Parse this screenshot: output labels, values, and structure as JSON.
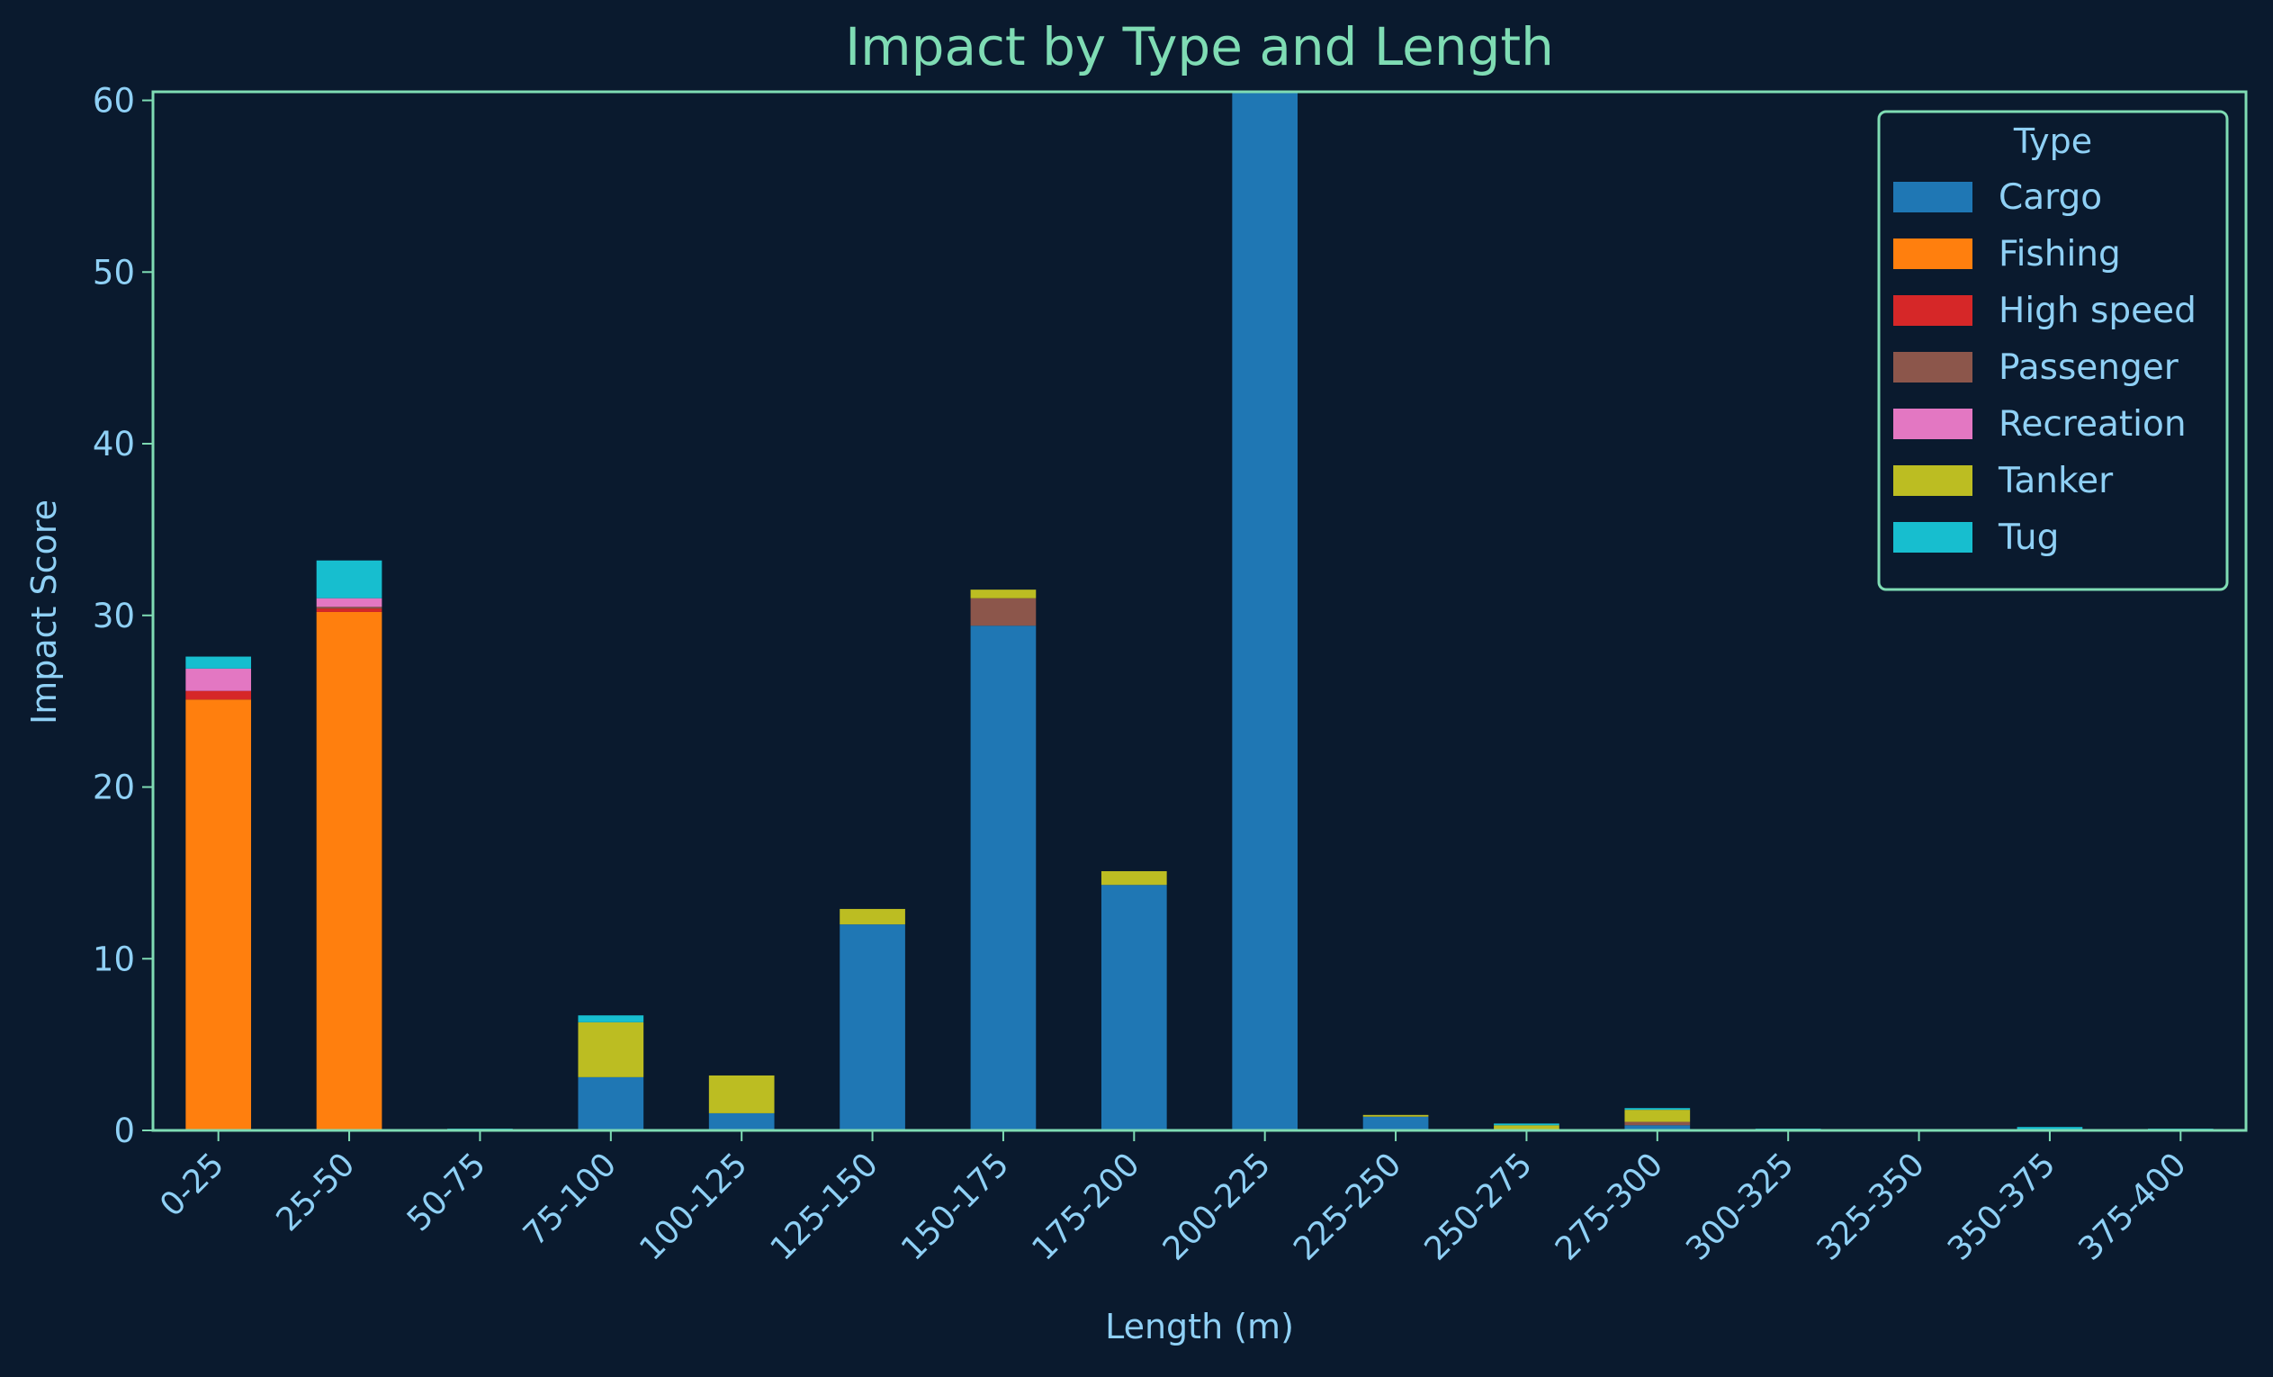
{
  "chart_data": {
    "type": "bar",
    "stacked": true,
    "title": "Impact by Type and Length",
    "xlabel": "Length (m)",
    "ylabel": "Impact Score",
    "ylim": [
      0,
      60.5
    ],
    "yticks": [
      0,
      10,
      20,
      30,
      40,
      50,
      60
    ],
    "grid": false,
    "legend": {
      "title": "Type",
      "placement": "top-right"
    },
    "categories": [
      "0-25",
      "25-50",
      "50-75",
      "75-100",
      "100-125",
      "125-150",
      "150-175",
      "175-200",
      "200-225",
      "225-250",
      "250-275",
      "275-300",
      "300-325",
      "325-350",
      "350-375",
      "375-400"
    ],
    "series": [
      {
        "name": "Cargo",
        "color": "#1f77b4",
        "values": [
          0,
          0,
          0,
          3.1,
          1.0,
          12.0,
          29.4,
          14.3,
          60.5,
          0.8,
          0,
          0.3,
          0,
          0,
          0,
          0
        ]
      },
      {
        "name": "Fishing",
        "color": "#ff7f0e",
        "values": [
          25.1,
          30.2,
          0,
          0,
          0,
          0,
          0,
          0,
          0,
          0,
          0,
          0,
          0,
          0,
          0,
          0
        ]
      },
      {
        "name": "High speed",
        "color": "#d62728",
        "values": [
          0.5,
          0.2,
          0,
          0,
          0,
          0,
          0,
          0,
          0,
          0,
          0,
          0,
          0,
          0,
          0,
          0
        ]
      },
      {
        "name": "Passenger",
        "color": "#8c564b",
        "values": [
          0,
          0.1,
          0,
          0,
          0,
          0,
          1.6,
          0,
          0,
          0,
          0,
          0.2,
          0,
          0,
          0,
          0
        ]
      },
      {
        "name": "Recreation",
        "color": "#e377c2",
        "values": [
          1.3,
          0.5,
          0,
          0,
          0,
          0,
          0,
          0,
          0,
          0,
          0,
          0,
          0,
          0,
          0,
          0
        ]
      },
      {
        "name": "Tanker",
        "color": "#bcbd22",
        "values": [
          0,
          0,
          0,
          3.2,
          2.2,
          0.9,
          0.5,
          0.8,
          0,
          0.1,
          0.3,
          0.7,
          0,
          0,
          0,
          0
        ]
      },
      {
        "name": "Tug",
        "color": "#17becf",
        "values": [
          0.7,
          2.2,
          0.1,
          0.4,
          0,
          0,
          0,
          0,
          0,
          0,
          0.1,
          0.1,
          0.1,
          0.05,
          0.2,
          0.1
        ]
      }
    ]
  },
  "colors": {
    "background": "#0a1a2e",
    "axes": "#7fdcb4",
    "text": "#8fd0f5",
    "title": "#7fdcb4"
  }
}
